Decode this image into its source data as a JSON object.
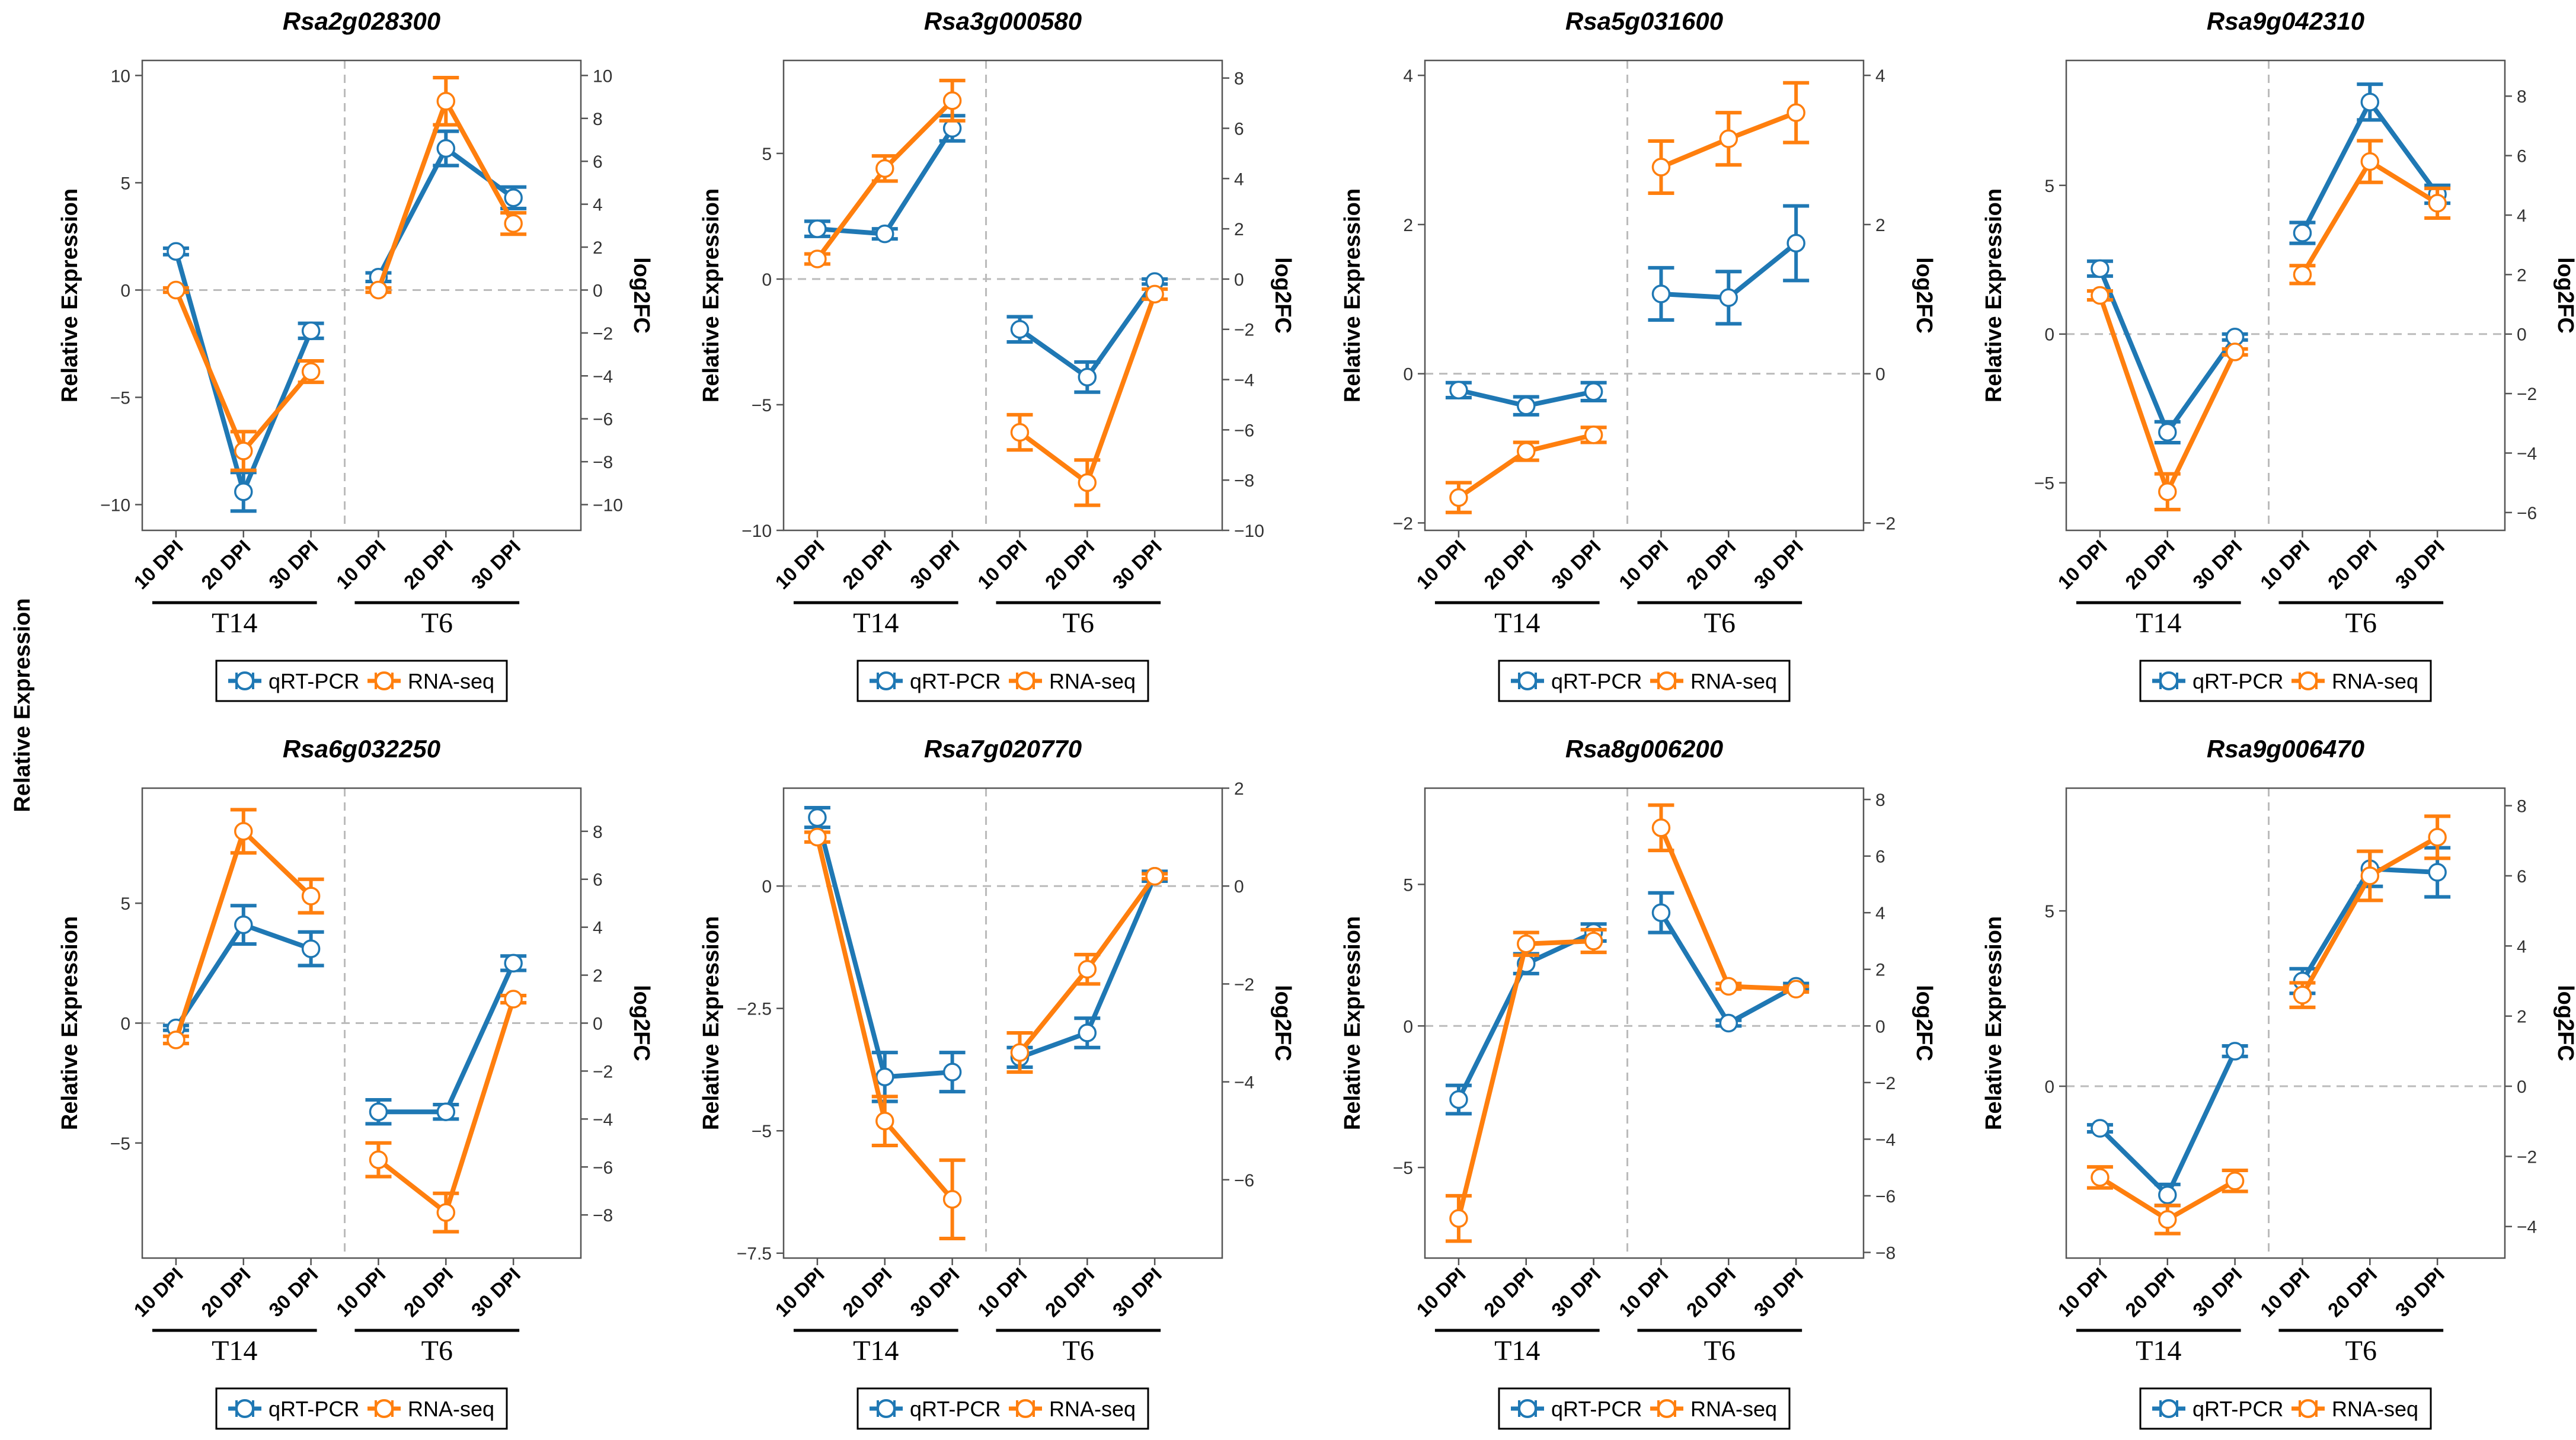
{
  "figure": {
    "global_ylabel": "Relative Expression",
    "legend": {
      "qrt_label": "qRT-PCR",
      "rna_label": "RNA-seq"
    },
    "colors": {
      "qrt": "#1f78b4",
      "rna": "#ff7f0e",
      "frame": "#555555",
      "grid": "#bbbbbb"
    }
  },
  "chart_data": [
    {
      "type": "line",
      "title": "Rsa2g028300",
      "categories": [
        "10 DPI",
        "20 DPI",
        "30 DPI",
        "10 DPI",
        "20 DPI",
        "30 DPI"
      ],
      "groups": [
        "T14",
        "T6"
      ],
      "ylabel": "Relative Expression",
      "ylabel_right": "log2FC",
      "ylim": [
        -11.2,
        10.7
      ],
      "y2lim": [
        -11.2,
        10.7
      ],
      "yticks": [
        10,
        5,
        0,
        -5,
        -10
      ],
      "y2ticks": [
        10,
        8,
        6,
        4,
        2,
        0,
        -2,
        -4,
        -6,
        -8,
        -10
      ],
      "series": [
        {
          "name": "qRT-PCR",
          "values": [
            1.8,
            -9.4,
            -1.9,
            0.6,
            6.6,
            4.3
          ],
          "errors": [
            0.15,
            0.9,
            0.35,
            0.2,
            0.8,
            0.5
          ]
        },
        {
          "name": "RNA-seq",
          "values": [
            0.0,
            -7.5,
            -3.8,
            0.0,
            8.8,
            3.1
          ],
          "errors": [
            0.1,
            0.9,
            0.5,
            0.1,
            1.1,
            0.5
          ]
        }
      ]
    },
    {
      "type": "line",
      "title": "Rsa3g000580",
      "categories": [
        "10 DPI",
        "20 DPI",
        "30 DPI",
        "10 DPI",
        "20 DPI",
        "30 DPI"
      ],
      "groups": [
        "T14",
        "T6"
      ],
      "ylabel": "Relative Expression",
      "ylabel_right": "log2FC",
      "ylim": [
        -10,
        8.7
      ],
      "y2lim": [
        -10,
        8.7
      ],
      "yticks": [
        5,
        0,
        -5,
        -10
      ],
      "y2ticks": [
        8,
        6,
        4,
        2,
        0,
        -2,
        -4,
        -6,
        -8,
        -10
      ],
      "series": [
        {
          "name": "qRT-PCR",
          "values": [
            2.0,
            1.8,
            6.0,
            -2.0,
            -3.9,
            -0.1
          ],
          "errors": [
            0.3,
            0.2,
            0.5,
            0.5,
            0.6,
            0.1
          ]
        },
        {
          "name": "RNA-seq",
          "values": [
            0.8,
            4.4,
            7.1,
            -6.1,
            -8.1,
            -0.6
          ],
          "errors": [
            0.2,
            0.5,
            0.8,
            0.7,
            0.9,
            0.2
          ]
        }
      ]
    },
    {
      "type": "line",
      "title": "Rsa5g031600",
      "categories": [
        "10 DPI",
        "20 DPI",
        "30 DPI",
        "10 DPI",
        "20 DPI",
        "30 DPI"
      ],
      "groups": [
        "T14",
        "T6"
      ],
      "ylabel": "Relative Expression",
      "ylabel_right": "log2FC",
      "ylim": [
        -2.1,
        4.2
      ],
      "y2lim": [
        -2.1,
        4.2
      ],
      "yticks": [
        4,
        2,
        0,
        -2
      ],
      "y2ticks": [
        4,
        2,
        0,
        -2
      ],
      "series": [
        {
          "name": "qRT-PCR",
          "values": [
            -0.22,
            -0.43,
            -0.24,
            1.07,
            1.02,
            1.75
          ],
          "errors": [
            0.1,
            0.12,
            0.12,
            0.35,
            0.35,
            0.5
          ]
        },
        {
          "name": "RNA-seq",
          "values": [
            -1.66,
            -1.04,
            -0.82,
            2.77,
            3.15,
            3.5
          ],
          "errors": [
            0.2,
            0.12,
            0.1,
            0.35,
            0.35,
            0.4
          ]
        }
      ]
    },
    {
      "type": "line",
      "title": "Rsa9g042310",
      "categories": [
        "10 DPI",
        "20 DPI",
        "30 DPI",
        "10 DPI",
        "20 DPI",
        "30 DPI"
      ],
      "groups": [
        "T14",
        "T6"
      ],
      "ylabel": "Relative Expression",
      "ylabel_right": "log2FC",
      "ylim": [
        -6.6,
        9.2
      ],
      "y2lim": [
        -6.6,
        9.2
      ],
      "yticks": [
        5,
        0,
        -5
      ],
      "y2ticks": [
        8,
        6,
        4,
        2,
        0,
        -2,
        -4,
        -6
      ],
      "series": [
        {
          "name": "qRT-PCR",
          "values": [
            2.2,
            -3.3,
            -0.1,
            3.4,
            7.8,
            4.7
          ],
          "errors": [
            0.25,
            0.35,
            0.1,
            0.35,
            0.6,
            0.3
          ]
        },
        {
          "name": "RNA-seq",
          "values": [
            1.3,
            -5.3,
            -0.6,
            2.0,
            5.8,
            4.4
          ],
          "errors": [
            0.15,
            0.6,
            0.1,
            0.3,
            0.7,
            0.5
          ]
        }
      ]
    },
    {
      "type": "line",
      "title": "Rsa6g032250",
      "categories": [
        "10 DPI",
        "20 DPI",
        "30 DPI",
        "10 DPI",
        "20 DPI",
        "30 DPI"
      ],
      "groups": [
        "T14",
        "T6"
      ],
      "ylabel": "Relative Expression",
      "ylabel_right": "log2FC",
      "ylim": [
        -9.8,
        9.8
      ],
      "y2lim": [
        -9.8,
        9.8
      ],
      "yticks": [
        5,
        0,
        -5
      ],
      "y2ticks": [
        8,
        6,
        4,
        2,
        0,
        -2,
        -4,
        -6,
        -8
      ],
      "series": [
        {
          "name": "qRT-PCR",
          "values": [
            -0.2,
            4.1,
            3.1,
            -3.7,
            -3.7,
            2.5
          ],
          "errors": [
            0.1,
            0.8,
            0.7,
            0.5,
            0.3,
            0.3
          ]
        },
        {
          "name": "RNA-seq",
          "values": [
            -0.7,
            8.0,
            5.3,
            -5.7,
            -7.9,
            1.0
          ],
          "errors": [
            0.15,
            0.9,
            0.7,
            0.7,
            0.8,
            0.15
          ]
        }
      ]
    },
    {
      "type": "line",
      "title": "Rsa7g020770",
      "categories": [
        "10 DPI",
        "20 DPI",
        "30 DPI",
        "10 DPI",
        "20 DPI",
        "30 DPI"
      ],
      "groups": [
        "T14",
        "T6"
      ],
      "ylabel": "Relative Expression",
      "ylabel_right": "log2FC",
      "ylim": [
        -7.6,
        2.0
      ],
      "y2lim": [
        -7.6,
        2.0
      ],
      "yticks": [
        0.0,
        -2.5,
        -5.0,
        -7.5
      ],
      "y2ticks": [
        2,
        0,
        -2,
        -4,
        -6
      ],
      "series": [
        {
          "name": "qRT-PCR",
          "values": [
            1.4,
            -3.9,
            -3.8,
            -3.5,
            -3.0,
            0.2
          ],
          "errors": [
            0.2,
            0.5,
            0.4,
            0.2,
            0.3,
            0.1
          ]
        },
        {
          "name": "RNA-seq",
          "values": [
            1.0,
            -4.8,
            -6.4,
            -3.4,
            -1.7,
            0.2
          ],
          "errors": [
            0.1,
            0.5,
            0.8,
            0.4,
            0.3,
            0.05
          ]
        }
      ]
    },
    {
      "type": "line",
      "title": "Rsa8g006200",
      "categories": [
        "10 DPI",
        "20 DPI",
        "30 DPI",
        "10 DPI",
        "20 DPI",
        "30 DPI"
      ],
      "groups": [
        "T14",
        "T6"
      ],
      "ylabel": "Relative Expression",
      "ylabel_right": "log2FC",
      "ylim": [
        -8.2,
        8.4
      ],
      "y2lim": [
        -8.2,
        8.4
      ],
      "yticks": [
        5,
        0,
        -5
      ],
      "y2ticks": [
        8,
        6,
        4,
        2,
        0,
        -2,
        -4,
        -6,
        -8
      ],
      "series": [
        {
          "name": "qRT-PCR",
          "values": [
            -2.6,
            2.2,
            3.3,
            4.0,
            0.1,
            1.4
          ],
          "errors": [
            0.5,
            0.35,
            0.3,
            0.7,
            0.1,
            0.1
          ]
        },
        {
          "name": "RNA-seq",
          "values": [
            -6.8,
            2.9,
            3.0,
            7.0,
            1.4,
            1.3
          ],
          "errors": [
            0.8,
            0.4,
            0.4,
            0.8,
            0.1,
            0.1
          ]
        }
      ]
    },
    {
      "type": "line",
      "title": "Rsa9g006470",
      "categories": [
        "10 DPI",
        "20 DPI",
        "30 DPI",
        "10 DPI",
        "20 DPI",
        "30 DPI"
      ],
      "groups": [
        "T14",
        "T6"
      ],
      "ylabel": "Relative Expression",
      "ylabel_right": "log2FC",
      "ylim": [
        -4.9,
        8.5
      ],
      "y2lim": [
        -4.9,
        8.5
      ],
      "yticks": [
        5,
        0
      ],
      "y2ticks": [
        8,
        6,
        4,
        2,
        0,
        -2,
        -4
      ],
      "series": [
        {
          "name": "qRT-PCR",
          "values": [
            -1.2,
            -3.1,
            1.0,
            3.0,
            6.2,
            6.1
          ],
          "errors": [
            0.1,
            0.3,
            0.15,
            0.35,
            0.5,
            0.7
          ]
        },
        {
          "name": "RNA-seq",
          "values": [
            -2.6,
            -3.8,
            -2.7,
            2.6,
            6.0,
            7.1
          ],
          "errors": [
            0.3,
            0.4,
            0.3,
            0.35,
            0.7,
            0.6
          ]
        }
      ]
    }
  ]
}
